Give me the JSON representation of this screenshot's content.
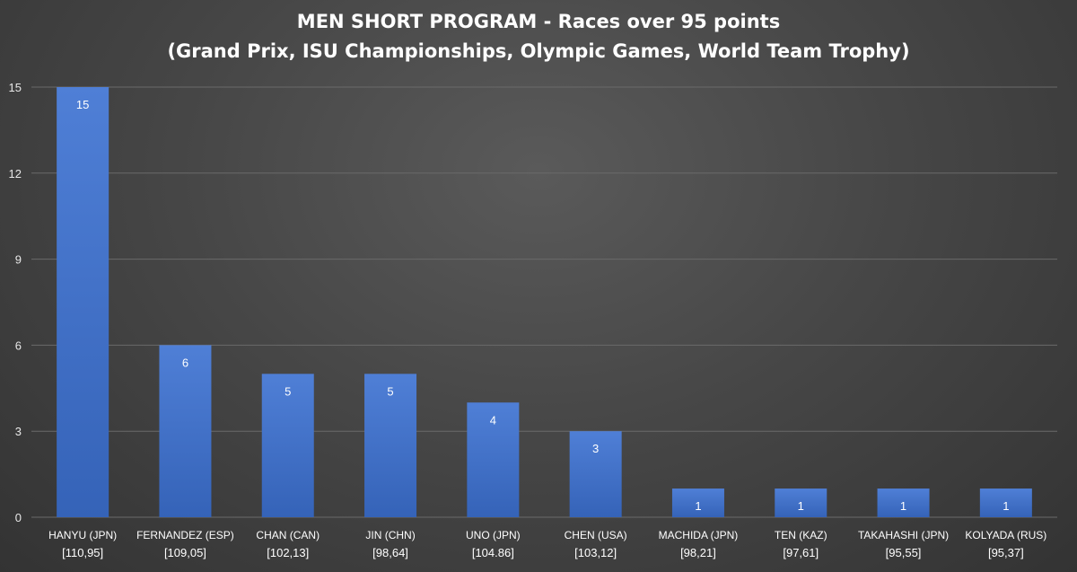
{
  "chart_data": {
    "type": "bar",
    "title": "MEN SHORT PROGRAM - Races over 95 points",
    "subtitle": "(Grand Prix, ISU Championships, Olympic Games, World Team Trophy)",
    "categories": [
      "HANYU (JPN)",
      "FERNANDEZ (ESP)",
      "CHAN (CAN)",
      "JIN (CHN)",
      "UNO (JPN)",
      "CHEN (USA)",
      "MACHIDA (JPN)",
      "TEN (KAZ)",
      "TAKAHASHI (JPN)",
      "KOLYADA (RUS)"
    ],
    "category_scores": [
      "[110,95]",
      "[109,05]",
      "[102,13]",
      "[98,64]",
      "[104.86]",
      "[103,12]",
      "[98,21]",
      "[97,61]",
      "[95,55]",
      "[95,37]"
    ],
    "values": [
      15,
      6,
      5,
      5,
      4,
      3,
      1,
      1,
      1,
      1
    ],
    "ylim": [
      0,
      15
    ],
    "yticks": [
      0,
      3,
      6,
      9,
      12,
      15
    ],
    "grid": true,
    "legend": "none",
    "bar_color_top": "#4f7fd6",
    "bar_color_bottom": "#3563b8",
    "grid_color": "#6a6a6a"
  }
}
